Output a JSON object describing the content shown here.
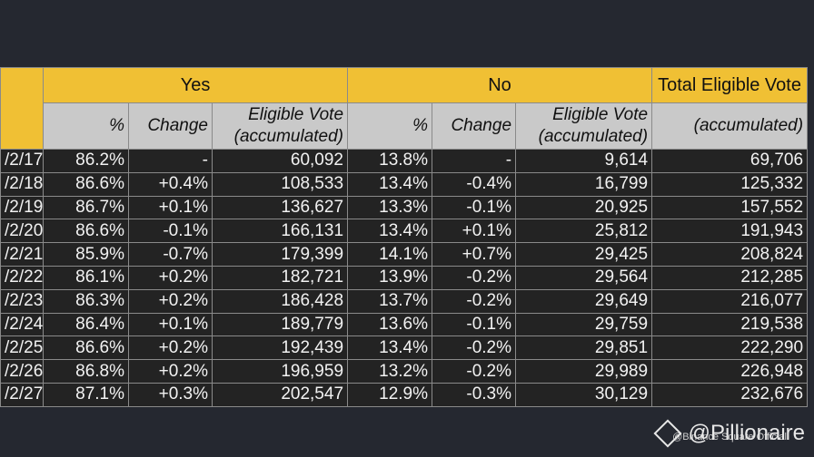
{
  "headers": {
    "yes": "Yes",
    "no": "No",
    "total": "Total Eligible Vote",
    "pct": "%",
    "change": "Change",
    "eligible_line1": "Eligible Vote",
    "eligible_line2": "(accumulated)",
    "total_sub": "(accumulated)"
  },
  "rows": [
    {
      "date": "/2/17",
      "yes_pct": "86.2%",
      "yes_change": "-",
      "yes_votes": "60,092",
      "no_pct": "13.8%",
      "no_change": "-",
      "no_votes": "9,614",
      "total": "69,706"
    },
    {
      "date": "/2/18",
      "yes_pct": "86.6%",
      "yes_change": "+0.4%",
      "yes_votes": "108,533",
      "no_pct": "13.4%",
      "no_change": "-0.4%",
      "no_votes": "16,799",
      "total": "125,332"
    },
    {
      "date": "/2/19",
      "yes_pct": "86.7%",
      "yes_change": "+0.1%",
      "yes_votes": "136,627",
      "no_pct": "13.3%",
      "no_change": "-0.1%",
      "no_votes": "20,925",
      "total": "157,552"
    },
    {
      "date": "/2/20",
      "yes_pct": "86.6%",
      "yes_change": "-0.1%",
      "yes_votes": "166,131",
      "no_pct": "13.4%",
      "no_change": "+0.1%",
      "no_votes": "25,812",
      "total": "191,943"
    },
    {
      "date": "/2/21",
      "yes_pct": "85.9%",
      "yes_change": "-0.7%",
      "yes_votes": "179,399",
      "no_pct": "14.1%",
      "no_change": "+0.7%",
      "no_votes": "29,425",
      "total": "208,824"
    },
    {
      "date": "/2/22",
      "yes_pct": "86.1%",
      "yes_change": "+0.2%",
      "yes_votes": "182,721",
      "no_pct": "13.9%",
      "no_change": "-0.2%",
      "no_votes": "29,564",
      "total": "212,285"
    },
    {
      "date": "/2/23",
      "yes_pct": "86.3%",
      "yes_change": "+0.2%",
      "yes_votes": "186,428",
      "no_pct": "13.7%",
      "no_change": "-0.2%",
      "no_votes": "29,649",
      "total": "216,077"
    },
    {
      "date": "/2/24",
      "yes_pct": "86.4%",
      "yes_change": "+0.1%",
      "yes_votes": "189,779",
      "no_pct": "13.6%",
      "no_change": "-0.1%",
      "no_votes": "29,759",
      "total": "219,538"
    },
    {
      "date": "/2/25",
      "yes_pct": "86.6%",
      "yes_change": "+0.2%",
      "yes_votes": "192,439",
      "no_pct": "13.4%",
      "no_change": "-0.2%",
      "no_votes": "29,851",
      "total": "222,290"
    },
    {
      "date": "/2/26",
      "yes_pct": "86.8%",
      "yes_change": "+0.2%",
      "yes_votes": "196,959",
      "no_pct": "13.2%",
      "no_change": "-0.2%",
      "no_votes": "29,989",
      "total": "226,948"
    },
    {
      "date": "/2/27",
      "yes_pct": "87.1%",
      "yes_change": "+0.3%",
      "yes_votes": "202,547",
      "no_pct": "12.9%",
      "no_change": "-0.3%",
      "no_votes": "30,129",
      "total": "232,676"
    }
  ],
  "watermark": {
    "handle": "@Pillionaire",
    "source": "@Binance Square Official",
    "logo_icon": "binance-diamond-icon"
  },
  "colors": {
    "header_yellow": "#f0c034",
    "header_gray": "#c9c9c9",
    "cell_dark": "#232323",
    "background": "#252830"
  }
}
